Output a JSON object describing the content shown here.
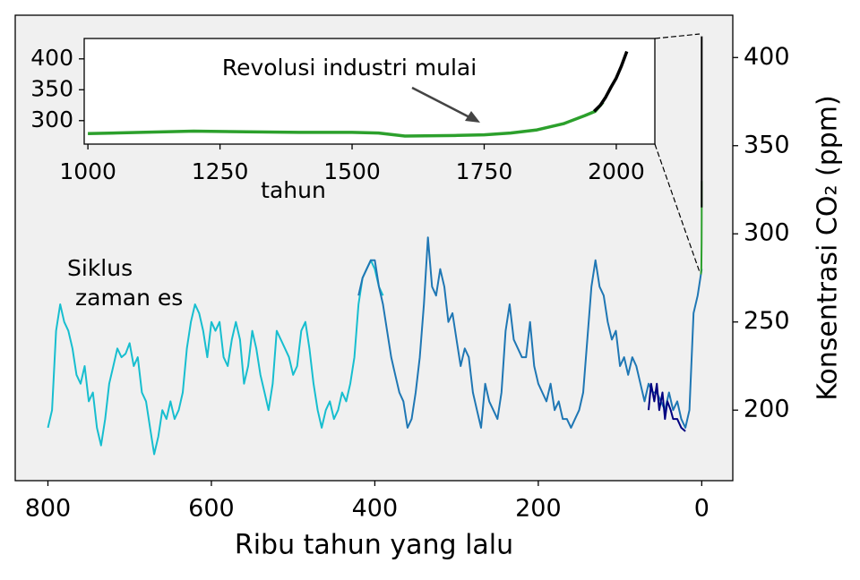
{
  "chart_data": [
    {
      "type": "line",
      "x_label": "Ribu tahun yang lalu",
      "y_label": "Konsentrasi CO₂ (ppm)",
      "y_axis": "right",
      "annotation": [
        "Siklus",
        "zaman es"
      ],
      "xlim": [
        840,
        -38
      ],
      "ylim": [
        160,
        424
      ],
      "xticks": [
        800,
        600,
        400,
        200,
        0
      ],
      "yticks": [
        200,
        250,
        300,
        350,
        400
      ],
      "series": [
        {
          "color": "#17becf",
          "x": [
            800,
            795,
            790,
            785,
            780,
            775,
            770,
            765,
            760,
            755,
            750,
            745,
            740,
            735,
            730,
            725,
            720,
            715,
            710,
            705,
            700,
            695,
            690,
            685,
            680,
            675,
            670,
            665,
            660,
            655,
            650,
            645,
            640,
            635,
            630,
            625,
            620,
            615,
            610,
            605,
            600,
            595,
            590,
            585,
            580,
            575,
            570,
            565,
            560,
            555,
            550,
            545,
            540,
            535,
            530,
            525,
            520,
            515,
            510,
            505,
            500,
            495,
            490,
            485,
            480,
            475,
            470,
            465,
            460,
            455,
            450,
            445,
            440,
            435,
            430,
            425,
            420,
            415,
            410,
            405,
            400,
            395,
            390
          ],
          "values": [
            190,
            200,
            245,
            260,
            250,
            245,
            235,
            220,
            215,
            225,
            205,
            210,
            190,
            180,
            195,
            215,
            225,
            235,
            230,
            232,
            238,
            225,
            230,
            210,
            205,
            190,
            175,
            185,
            200,
            195,
            205,
            195,
            200,
            210,
            235,
            250,
            260,
            255,
            245,
            230,
            250,
            245,
            250,
            230,
            225,
            240,
            250,
            240,
            215,
            225,
            245,
            235,
            220,
            210,
            200,
            215,
            245,
            240,
            235,
            230,
            220,
            225,
            245,
            250,
            235,
            215,
            200,
            190,
            200,
            205,
            195,
            200,
            210,
            205,
            215,
            230,
            260,
            275,
            280,
            285,
            280,
            270,
            265
          ]
        },
        {
          "color": "#1f77b4",
          "x": [
            420,
            415,
            410,
            405,
            400,
            395,
            390,
            385,
            380,
            375,
            370,
            365,
            360,
            355,
            350,
            345,
            340,
            335,
            330,
            325,
            320,
            315,
            310,
            305,
            300,
            295,
            290,
            285,
            280,
            275,
            270,
            265,
            260,
            255,
            250,
            245,
            240,
            235,
            230,
            225,
            220,
            215,
            210,
            205,
            200,
            195,
            190,
            185,
            180,
            175,
            170,
            165,
            160,
            155,
            150,
            145,
            140,
            135,
            130,
            125,
            120,
            115,
            110,
            105,
            100,
            95,
            90,
            85,
            80,
            75,
            70,
            65,
            60,
            55,
            50,
            45,
            40,
            35,
            30,
            25,
            20,
            15,
            10,
            5,
            0
          ],
          "values": [
            265,
            275,
            280,
            285,
            285,
            270,
            260,
            245,
            230,
            220,
            210,
            205,
            190,
            195,
            210,
            230,
            260,
            298,
            270,
            265,
            280,
            270,
            250,
            255,
            240,
            225,
            235,
            230,
            210,
            200,
            190,
            215,
            205,
            200,
            195,
            210,
            245,
            260,
            240,
            235,
            230,
            230,
            250,
            225,
            215,
            210,
            205,
            215,
            200,
            205,
            195,
            195,
            190,
            195,
            200,
            210,
            240,
            270,
            285,
            270,
            265,
            250,
            240,
            245,
            225,
            230,
            220,
            230,
            225,
            215,
            205,
            215,
            210,
            210,
            205,
            200,
            210,
            200,
            205,
            195,
            190,
            200,
            255,
            265,
            280
          ]
        },
        {
          "color": "#000080",
          "x": [
            65,
            62,
            58,
            55,
            52,
            48,
            45,
            42,
            38,
            35,
            30,
            25,
            20
          ],
          "values": [
            200,
            215,
            205,
            215,
            200,
            210,
            195,
            205,
            200,
            195,
            195,
            190,
            188
          ]
        },
        {
          "color": "#2ca02c",
          "x": [
            1.0,
            0.5,
            0.1,
            0.05,
            0.03
          ],
          "values": [
            277,
            280,
            295,
            310,
            330
          ]
        },
        {
          "color": "#000000",
          "x": [
            0.06,
            0
          ],
          "values": [
            315,
            412
          ]
        }
      ]
    },
    {
      "type": "line",
      "x_label": "tahun",
      "annotation": "Revolusi industri mulai",
      "y_axis": "left",
      "xlim": [
        993,
        2073
      ],
      "ylim": [
        262,
        433
      ],
      "xticks": [
        1000,
        1250,
        1500,
        1750,
        2000
      ],
      "yticks": [
        300,
        350,
        400
      ],
      "series": [
        {
          "color": "#2ca02c",
          "x": [
            1000,
            1100,
            1200,
            1300,
            1400,
            1500,
            1550,
            1600,
            1700,
            1750,
            1800,
            1850,
            1900,
            1940,
            1960,
            1975
          ],
          "values": [
            279,
            281,
            283,
            282,
            281,
            281,
            280,
            275,
            276,
            277,
            280,
            285,
            295,
            308,
            315,
            330
          ]
        },
        {
          "color": "#000000",
          "x": [
            1958,
            1970,
            1980,
            1990,
            2000,
            2010,
            2020
          ],
          "values": [
            315,
            325,
            338,
            354,
            369,
            389,
            412
          ]
        }
      ]
    }
  ]
}
